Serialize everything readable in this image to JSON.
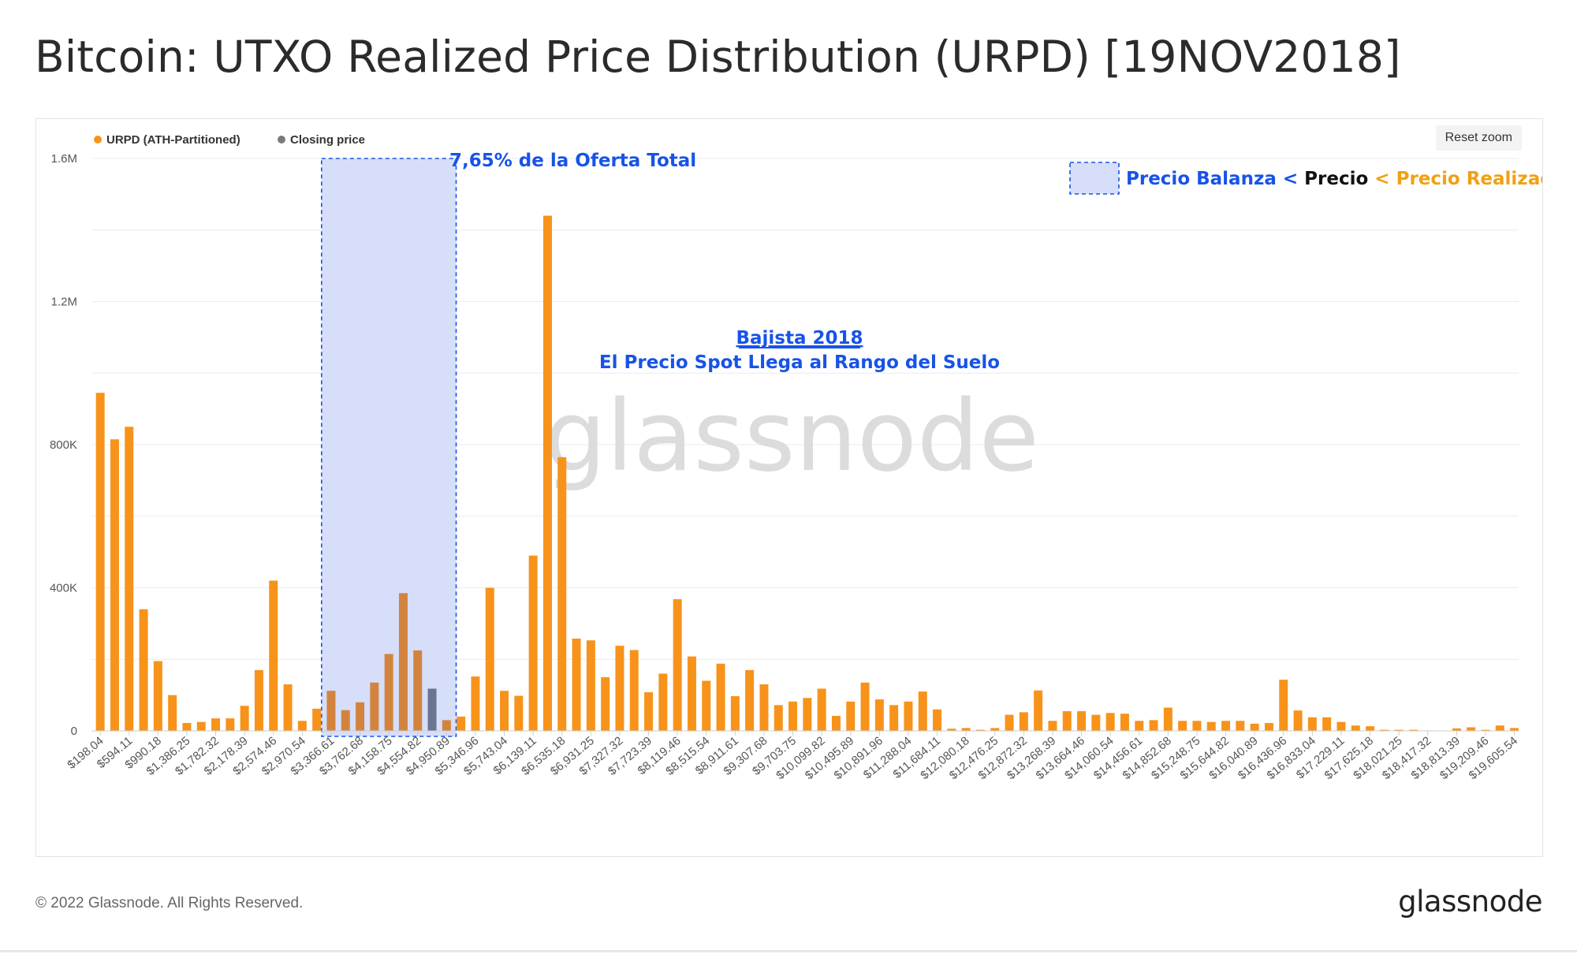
{
  "page": {
    "title": "Bitcoin: UTXO Realized Price Distribution (URPD) [19NOV2018]",
    "copyright": "© 2022 Glassnode. All Rights Reserved.",
    "logo": "glassnode",
    "watermark": "glassnode",
    "reset_zoom": "Reset zoom"
  },
  "annotations": {
    "supply_label": "7,65% de la Oferta Total",
    "headline_line1": "Bajista 2018",
    "headline_line2": "El Precio Spot Llega al Rango del Suelo",
    "key_part1": "Precio Balanza",
    "key_sep1": " < ",
    "key_part2": "Precio",
    "key_part3": " < Precio Realizado"
  },
  "colors": {
    "orange": "#f7931a",
    "shaded_orange": "#d2843e",
    "closing_price": "#6b7591",
    "blue": "#1853e8",
    "band_fill": "#d6defa",
    "key_orange": "#f0a016"
  },
  "chart_data": {
    "type": "bar",
    "legend_position": "top-left",
    "grid": true,
    "ylim": [
      0,
      1600000
    ],
    "yticks": [
      {
        "value": 0,
        "label": "0"
      },
      {
        "value": 400000,
        "label": "400K"
      },
      {
        "value": 800000,
        "label": "800K"
      },
      {
        "value": 1200000,
        "label": "1.2M"
      },
      {
        "value": 1600000,
        "label": "1.6M"
      }
    ],
    "xticks": [
      "$198.04",
      "$594.11",
      "$990.18",
      "$1,386.25",
      "$1,782.32",
      "$2,178.39",
      "$2,574.46",
      "$2,970.54",
      "$3,366.61",
      "$3,762.68",
      "$4,158.75",
      "$4,554.82",
      "$4,950.89",
      "$5,346.96",
      "$5,743.04",
      "$6,139.11",
      "$6,535.18",
      "$6,931.25",
      "$7,327.32",
      "$7,723.39",
      "$8,119.46",
      "$8,515.54",
      "$8,911.61",
      "$9,307.68",
      "$9,703.75",
      "$10,099.82",
      "$10,495.89",
      "$10,891.96",
      "$11,288.04",
      "$11,684.11",
      "$12,080.18",
      "$12,476.25",
      "$12,872.32",
      "$13,268.39",
      "$13,664.46",
      "$14,060.54",
      "$14,456.61",
      "$14,852.68",
      "$15,248.75",
      "$15,644.82",
      "$16,040.89",
      "$16,436.96",
      "$16,833.04",
      "$17,229.11",
      "$17,625.18",
      "$18,021.25",
      "$18,417.32",
      "$18,813.39",
      "$19,209.46",
      "$19,605.54"
    ],
    "series": [
      {
        "name": "URPD (ATH-Partitioned)",
        "values": [
          945000,
          815000,
          850000,
          340000,
          195000,
          100000,
          22000,
          25000,
          35000,
          35000,
          70000,
          170000,
          420000,
          130000,
          28000,
          62000,
          112000,
          58000,
          80000,
          135000,
          215000,
          385000,
          225000,
          118000,
          30000,
          40000,
          152000,
          400000,
          112000,
          98000,
          490000,
          1440000,
          765000,
          258000,
          253000,
          150000,
          238000,
          226000,
          108000,
          160000,
          368000,
          208000,
          140000,
          188000,
          97000,
          170000,
          130000,
          72000,
          82000,
          92000,
          118000,
          42000,
          82000,
          135000,
          88000,
          72000,
          82000,
          110000,
          60000,
          6000,
          8000,
          3000,
          8000,
          45000,
          52000,
          113000,
          28000,
          55000,
          55000,
          45000,
          50000,
          48000,
          28000,
          30000,
          65000,
          28000,
          28000,
          25000,
          28000,
          28000,
          20000,
          22000,
          143000,
          57000,
          38000,
          38000,
          25000,
          15000,
          13000,
          3000,
          3000,
          3000,
          0,
          0,
          7000,
          10000,
          3000,
          15000,
          8000
        ]
      },
      {
        "name": "Closing price",
        "index": 23,
        "value": 225000
      }
    ],
    "range_band": {
      "from_index": 16,
      "to_index": 24
    }
  }
}
